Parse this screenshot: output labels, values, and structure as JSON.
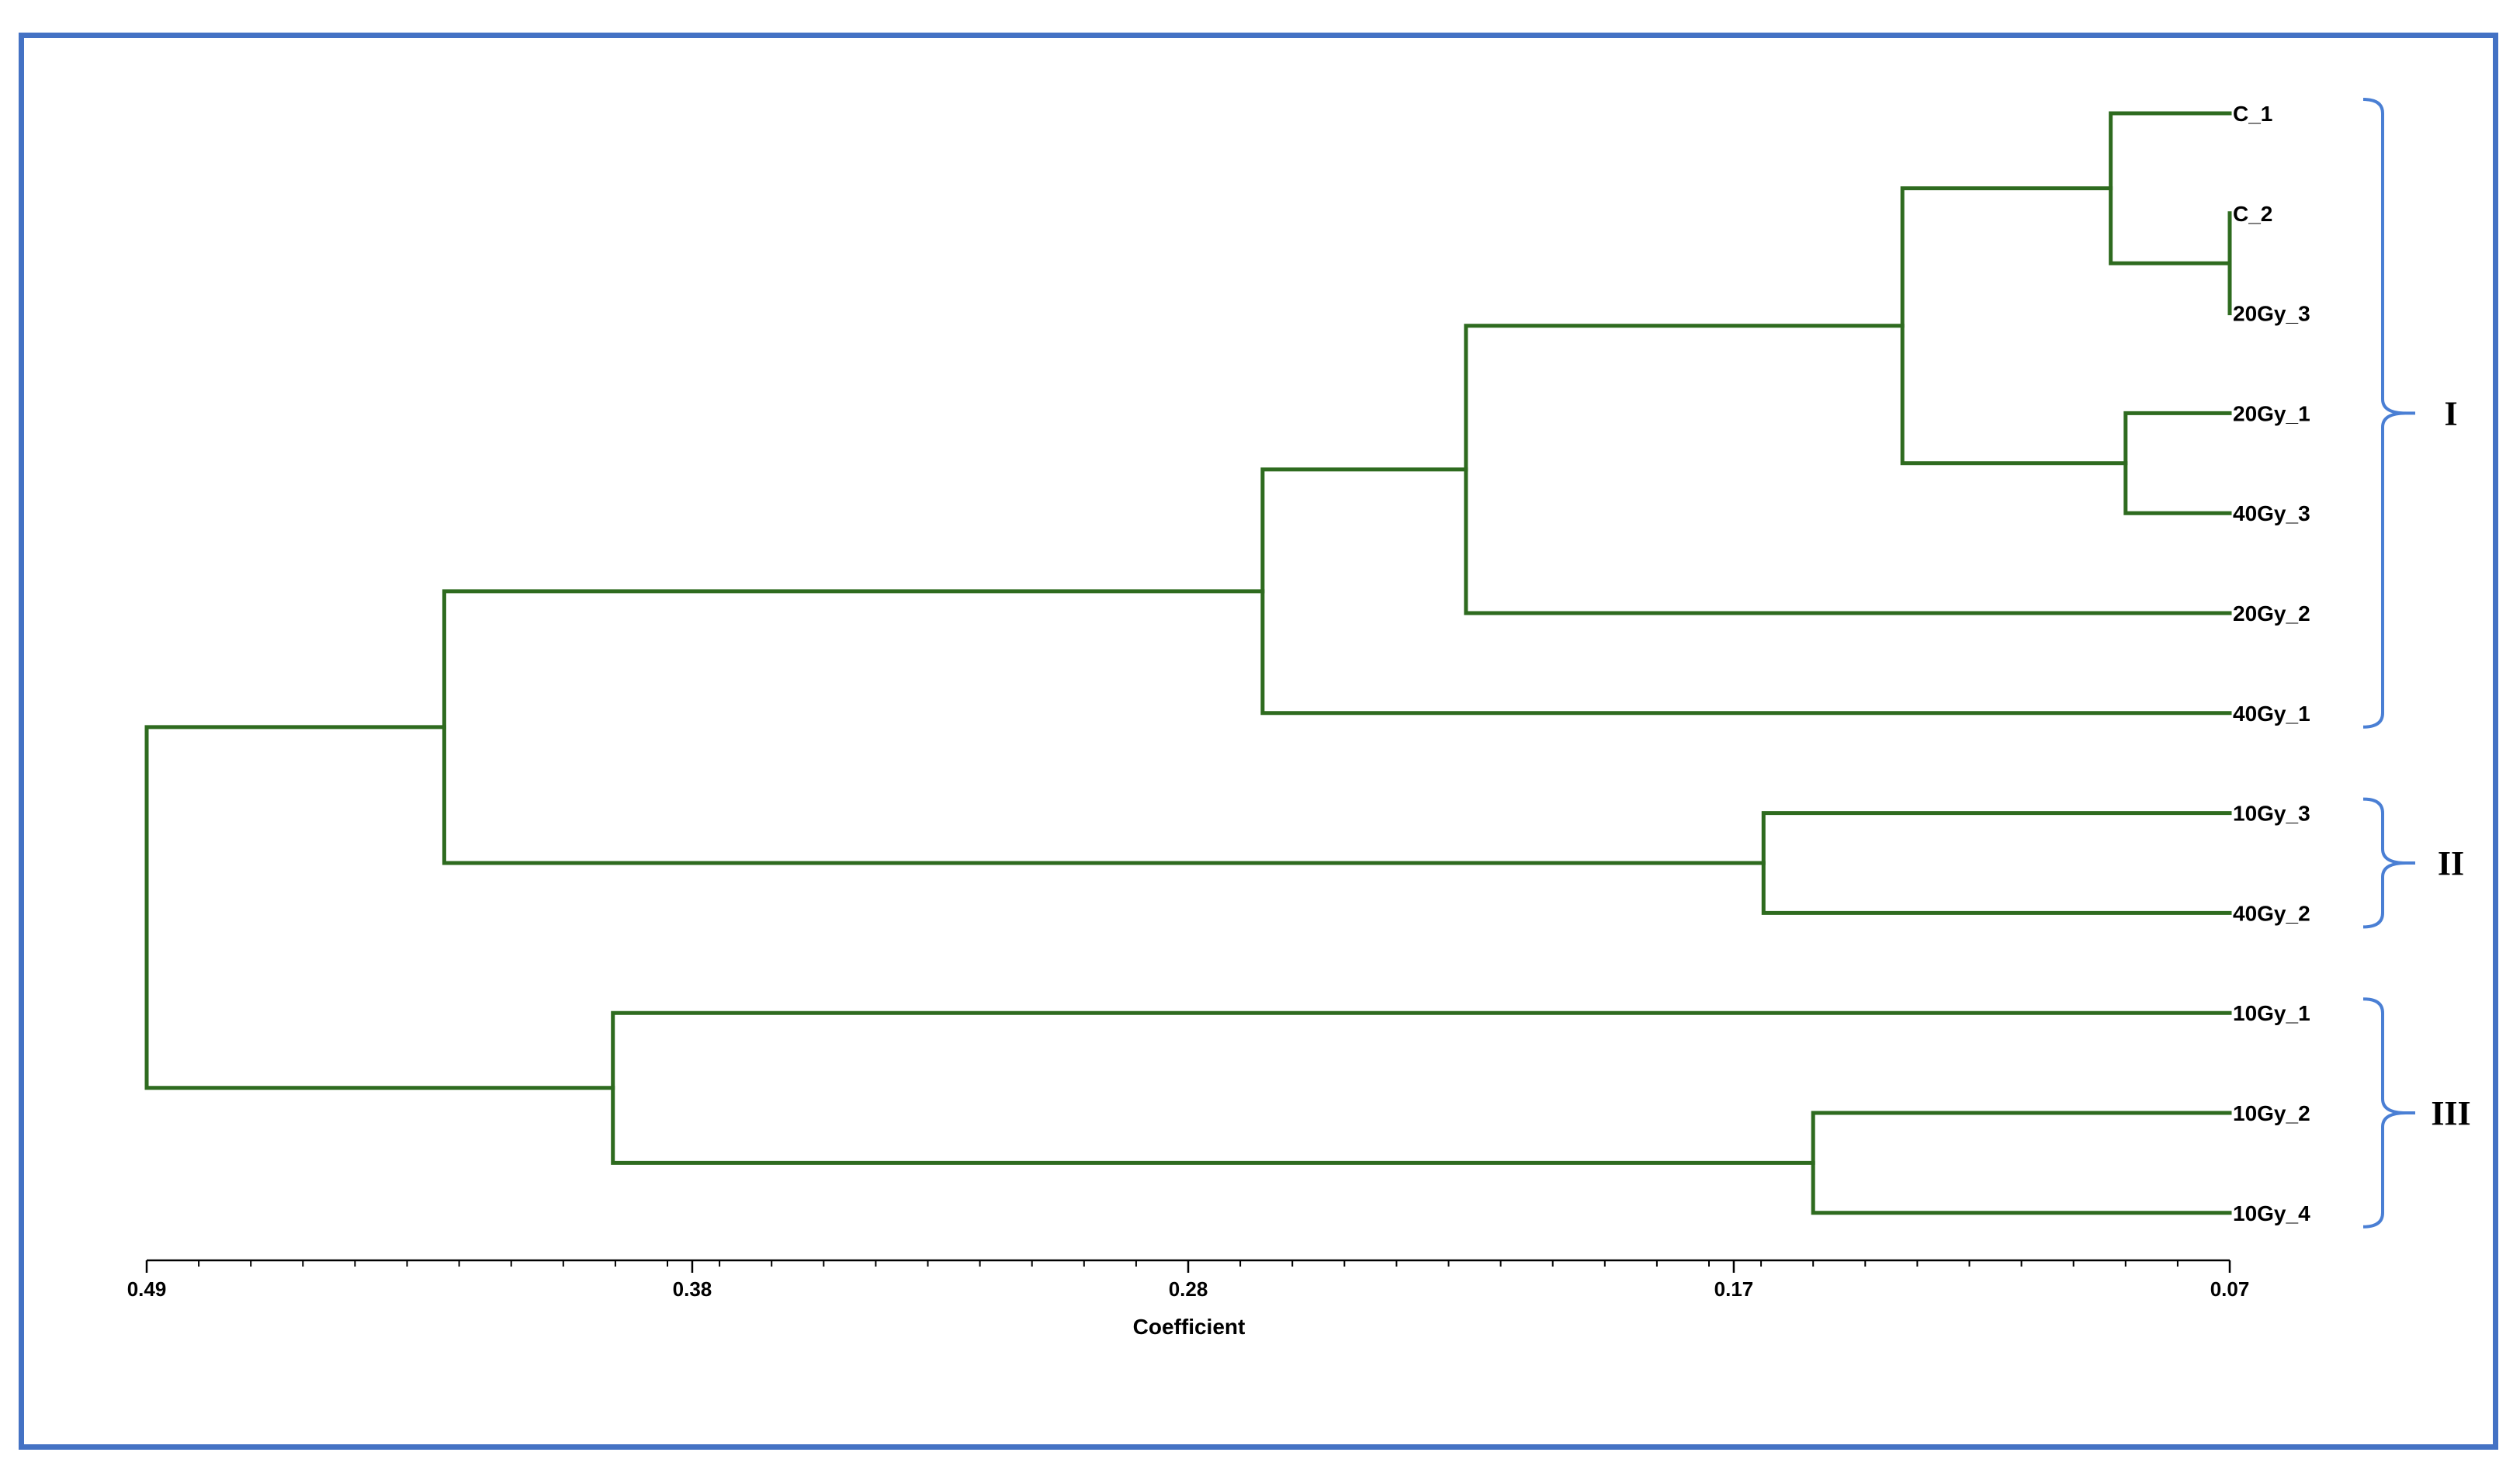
{
  "chart_data": {
    "type": "dendrogram",
    "xlabel": "Coefficient",
    "xlim": [
      0.49,
      0.07
    ],
    "ticks": [
      {
        "value": 0.49,
        "label": "0.49"
      },
      {
        "value": 0.38,
        "label": "0.38"
      },
      {
        "value": 0.28,
        "label": "0.28"
      },
      {
        "value": 0.17,
        "label": "0.17"
      },
      {
        "value": 0.07,
        "label": "0.07"
      }
    ],
    "leaves": [
      "C_1",
      "C_2",
      "20Gy_3",
      "20Gy_1",
      "40Gy_3",
      "20Gy_2",
      "40Gy_1",
      "10Gy_3",
      "40Gy_2",
      "10Gy_1",
      "10Gy_2",
      "10Gy_4"
    ],
    "merges": [
      {
        "id": "m1",
        "left": "C_2",
        "right": "20Gy_3",
        "height": 0.07
      },
      {
        "id": "m2",
        "left": "C_1",
        "right": "m1",
        "height": 0.094
      },
      {
        "id": "m3",
        "left": "20Gy_1",
        "right": "40Gy_3",
        "height": 0.091
      },
      {
        "id": "m4",
        "left": "m2",
        "right": "m3",
        "height": 0.136
      },
      {
        "id": "m5",
        "left": "m4",
        "right": "20Gy_2",
        "height": 0.224
      },
      {
        "id": "m6",
        "left": "m5",
        "right": "40Gy_1",
        "height": 0.265
      },
      {
        "id": "m7",
        "left": "10Gy_3",
        "right": "40Gy_2",
        "height": 0.164
      },
      {
        "id": "m8",
        "left": "m6",
        "right": "m7",
        "height": 0.43
      },
      {
        "id": "m9",
        "left": "10Gy_2",
        "right": "10Gy_4",
        "height": 0.154
      },
      {
        "id": "m10",
        "left": "10Gy_1",
        "right": "m9",
        "height": 0.396
      },
      {
        "id": "m11",
        "left": "m8",
        "right": "m10",
        "height": 0.49
      }
    ],
    "clusters": [
      {
        "label": "I",
        "first": "C_1",
        "last": "40Gy_1"
      },
      {
        "label": "II",
        "first": "10Gy_3",
        "last": "40Gy_2"
      },
      {
        "label": "III",
        "first": "10Gy_1",
        "last": "10Gy_4"
      }
    ],
    "branch_color": "#2e6b1f",
    "bracket_color": "#4a7fd4",
    "frame_color": "#4472c4"
  }
}
